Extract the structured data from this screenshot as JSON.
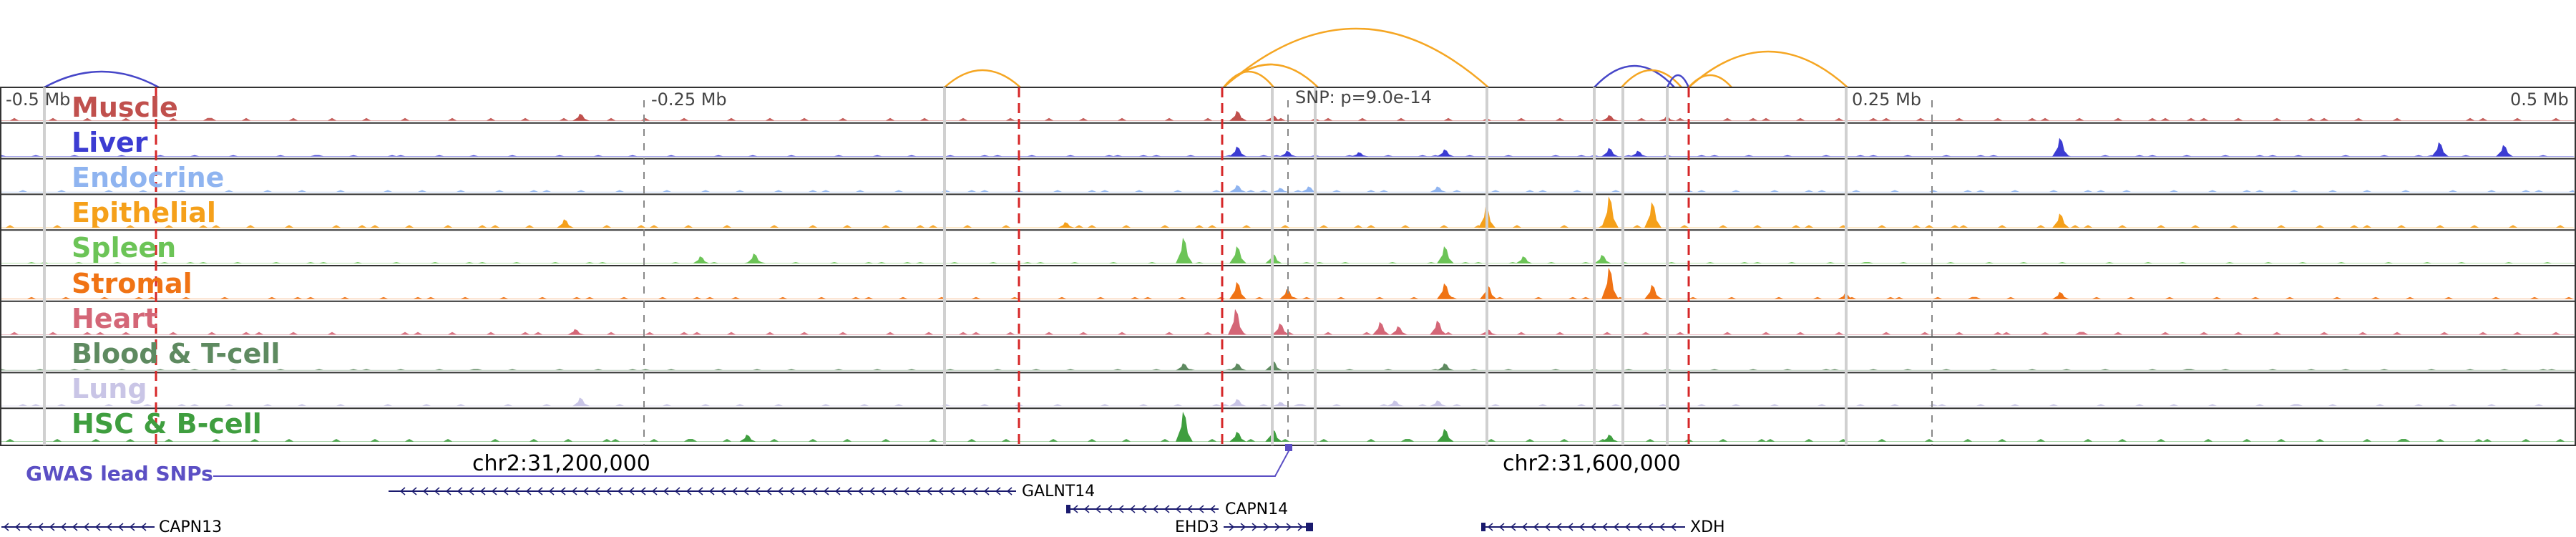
{
  "scale_labels": [
    "-0.5 Mb",
    "-0.25 Mb",
    "0.25 Mb",
    "0.5 Mb"
  ],
  "snp_annotation": "SNP: p=9.0e-14",
  "tracks": [
    {
      "name": "Muscle",
      "color": "#c0504d"
    },
    {
      "name": "Liver",
      "color": "#3c3cd2"
    },
    {
      "name": "Endocrine",
      "color": "#8fb4f0"
    },
    {
      "name": "Epithelial",
      "color": "#f5a01a"
    },
    {
      "name": "Spleen",
      "color": "#6cc457"
    },
    {
      "name": "Stromal",
      "color": "#f07314"
    },
    {
      "name": "Heart",
      "color": "#d46677"
    },
    {
      "name": "Blood & T-cell",
      "color": "#5e8a60"
    },
    {
      "name": "Lung",
      "color": "#c9c5e6"
    },
    {
      "name": "HSC & B-cell",
      "color": "#3f9e3f"
    }
  ],
  "coordinates": [
    "chr2:31,200,000",
    "chr2:31,600,000"
  ],
  "gwas_legend": "GWAS lead SNPs",
  "genes": [
    {
      "name": "GALNT14",
      "strand": "-"
    },
    {
      "name": "CAPN14",
      "strand": "-"
    },
    {
      "name": "EHD3",
      "strand": "+"
    },
    {
      "name": "XDH",
      "strand": "-"
    },
    {
      "name": "CAPN13",
      "strand": "-"
    }
  ],
  "colors": {
    "loop_orange": "#f5a623",
    "loop_blue": "#4646c8",
    "highlight_red": "#d62728",
    "highlight_gray": "#d0d0d0"
  }
}
